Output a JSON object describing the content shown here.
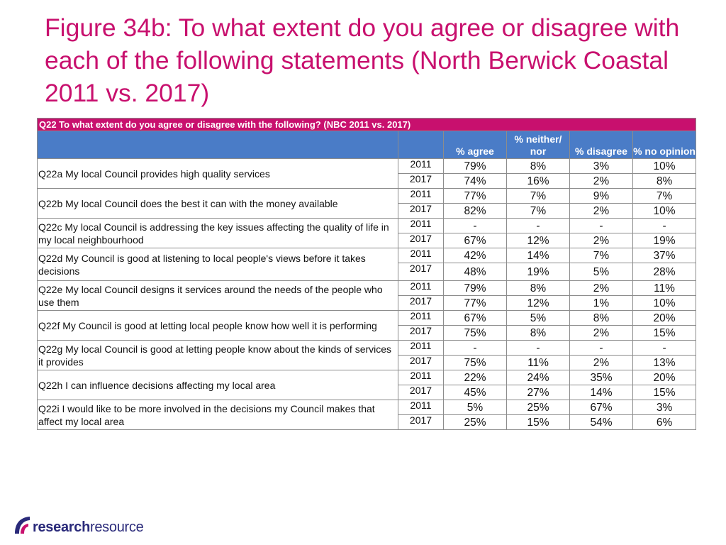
{
  "title": "Figure 34b: To what extent do you agree or disagree with each of the following statements (North Berwick Coastal 2011 vs. 2017)",
  "table": {
    "banner": "Q22 To what extent do you agree or disagree with the following? (NBC 2011 vs. 2017)",
    "headers": [
      "",
      "",
      "% agree",
      "% neither/ nor",
      "% disagree",
      "% no opinion"
    ],
    "rows": [
      {
        "q": "Q22a My local Council provides high quality services",
        "years": [
          {
            "year": "2011",
            "values": [
              "79%",
              "8%",
              "3%",
              "10%"
            ]
          },
          {
            "year": "2017",
            "values": [
              "74%",
              "16%",
              "2%",
              "8%"
            ]
          }
        ]
      },
      {
        "q": "Q22b My local Council does the best it can with the money available",
        "years": [
          {
            "year": "2011",
            "values": [
              "77%",
              "7%",
              "9%",
              "7%"
            ]
          },
          {
            "year": "2017",
            "values": [
              "82%",
              "7%",
              "2%",
              "10%"
            ]
          }
        ]
      },
      {
        "q": "Q22c My local Council is addressing the key issues affecting the quality of life in my local neighbourhood",
        "years": [
          {
            "year": "2011",
            "values": [
              "-",
              "-",
              "-",
              "-"
            ]
          },
          {
            "year": "2017",
            "values": [
              "67%",
              "12%",
              "2%",
              "19%"
            ]
          }
        ]
      },
      {
        "q": "Q22d My Council is good at listening to local people's views before it takes decisions",
        "years": [
          {
            "year": "2011",
            "values": [
              "42%",
              "14%",
              "7%",
              "37%"
            ]
          },
          {
            "year": "2017",
            "values": [
              "48%",
              "19%",
              "5%",
              "28%"
            ]
          }
        ]
      },
      {
        "q": "Q22e My local Council designs it services around the needs of the people who use them",
        "years": [
          {
            "year": "2011",
            "values": [
              "79%",
              "8%",
              "2%",
              "11%"
            ]
          },
          {
            "year": "2017",
            "values": [
              "77%",
              "12%",
              "1%",
              "10%"
            ]
          }
        ]
      },
      {
        "q": "Q22f My Council is good at letting local people know how well it is performing",
        "years": [
          {
            "year": "2011",
            "values": [
              "67%",
              "5%",
              "8%",
              "20%"
            ]
          },
          {
            "year": "2017",
            "values": [
              "75%",
              "8%",
              "2%",
              "15%"
            ]
          }
        ]
      },
      {
        "q": "Q22g My local Council is good at letting people know about the kinds of services it provides",
        "years": [
          {
            "year": "2011",
            "values": [
              "-",
              "-",
              "-",
              "-"
            ]
          },
          {
            "year": "2017",
            "values": [
              "75%",
              "11%",
              "2%",
              "13%"
            ]
          }
        ]
      },
      {
        "q": "Q22h I can influence decisions affecting my local area",
        "years": [
          {
            "year": "2011",
            "values": [
              "22%",
              "24%",
              "35%",
              "20%"
            ]
          },
          {
            "year": "2017",
            "values": [
              "45%",
              "27%",
              "14%",
              "15%"
            ]
          }
        ]
      },
      {
        "q": "Q22i I would like to be more involved in the decisions my Council makes that affect my local area",
        "years": [
          {
            "year": "2011",
            "values": [
              "5%",
              "25%",
              "67%",
              "3%"
            ]
          },
          {
            "year": "2017",
            "values": [
              "25%",
              "15%",
              "54%",
              "6%"
            ]
          }
        ]
      }
    ]
  },
  "logo": {
    "bold": "research",
    "normal": "resource",
    "icon": "research-resource-logo-icon"
  },
  "colors": {
    "title": "#c8106e",
    "banner": "#c8106e",
    "header": "#4a7cc7",
    "logo_text": "#2a2a7a",
    "logo_accent": "#c8106e"
  }
}
